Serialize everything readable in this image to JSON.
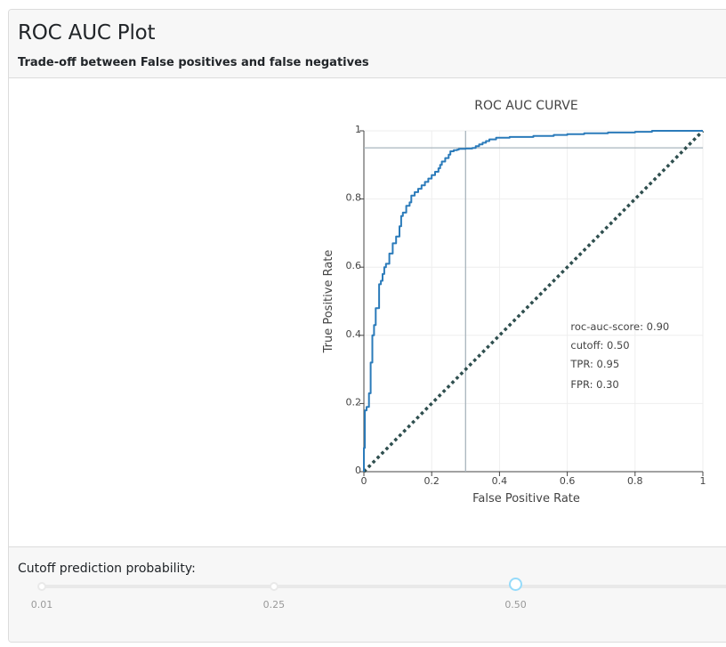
{
  "card": {
    "title": "ROC AUC Plot",
    "subtitle": "Trade-off between False positives and false negatives"
  },
  "chart_data": {
    "type": "line",
    "title": "ROC AUC CURVE",
    "xlabel": "False Positive Rate",
    "ylabel": "True Positive Rate",
    "xlim": [
      0,
      1
    ],
    "ylim": [
      0,
      1
    ],
    "xticks": [
      0,
      0.2,
      0.4,
      0.6,
      0.8,
      1
    ],
    "yticks": [
      0,
      0.2,
      0.4,
      0.6,
      0.8,
      1
    ],
    "xtick_labels": [
      "0",
      "0.2",
      "0.4",
      "0.6",
      "0.8",
      "1"
    ],
    "ytick_labels": [
      "0",
      "0.2",
      "0.4",
      "0.6",
      "0.8",
      "1"
    ],
    "grid": true,
    "colors": {
      "roc": "#2b7bba",
      "diagonal": "#2f4f4f",
      "crosshair": "#a9b5bd",
      "grid": "#eeeeee"
    },
    "series": [
      {
        "x": [
          0,
          0,
          0.003,
          0.003,
          0.008,
          0.008,
          0.015,
          0.015,
          0.02,
          0.02,
          0.025,
          0.025,
          0.03,
          0.03,
          0.035,
          0.035,
          0.045,
          0.045,
          0.05,
          0.05,
          0.055,
          0.055,
          0.06,
          0.06,
          0.065,
          0.065,
          0.075,
          0.075,
          0.085,
          0.085,
          0.095,
          0.095,
          0.105,
          0.105,
          0.11,
          0.11,
          0.115,
          0.115,
          0.125,
          0.125,
          0.135,
          0.135,
          0.14,
          0.14,
          0.15,
          0.15,
          0.16,
          0.16,
          0.17,
          0.17,
          0.18,
          0.18,
          0.19,
          0.19,
          0.2,
          0.2,
          0.21,
          0.21,
          0.22,
          0.22,
          0.225,
          0.225,
          0.23,
          0.23,
          0.24,
          0.24,
          0.25,
          0.25,
          0.255,
          0.255,
          0.265,
          0.265,
          0.275,
          0.275,
          0.28,
          0.28,
          0.3,
          0.3,
          0.32,
          0.32,
          0.33,
          0.33,
          0.34,
          0.34,
          0.35,
          0.35,
          0.36,
          0.36,
          0.37,
          0.37,
          0.39,
          0.39,
          0.43,
          0.43,
          0.5,
          0.5,
          0.56,
          0.56,
          0.6,
          0.6,
          0.65,
          0.65,
          0.72,
          0.72,
          0.8,
          0.8,
          0.85,
          0.85,
          1
        ],
        "y": [
          0,
          0.07,
          0.07,
          0.18,
          0.18,
          0.19,
          0.19,
          0.23,
          0.23,
          0.32,
          0.32,
          0.4,
          0.4,
          0.43,
          0.43,
          0.48,
          0.48,
          0.55,
          0.55,
          0.56,
          0.56,
          0.58,
          0.58,
          0.6,
          0.6,
          0.61,
          0.61,
          0.64,
          0.64,
          0.67,
          0.67,
          0.69,
          0.69,
          0.72,
          0.72,
          0.75,
          0.75,
          0.76,
          0.76,
          0.78,
          0.78,
          0.79,
          0.79,
          0.81,
          0.81,
          0.82,
          0.82,
          0.83,
          0.83,
          0.84,
          0.84,
          0.85,
          0.85,
          0.86,
          0.86,
          0.87,
          0.87,
          0.88,
          0.88,
          0.89,
          0.89,
          0.9,
          0.9,
          0.91,
          0.91,
          0.92,
          0.92,
          0.93,
          0.93,
          0.94,
          0.94,
          0.943,
          0.943,
          0.945,
          0.945,
          0.947,
          0.947,
          0.948,
          0.948,
          0.95,
          0.95,
          0.955,
          0.955,
          0.96,
          0.96,
          0.965,
          0.965,
          0.97,
          0.97,
          0.975,
          0.975,
          0.98,
          0.98,
          0.982,
          0.982,
          0.985,
          0.985,
          0.988,
          0.988,
          0.99,
          0.99,
          0.993,
          0.993,
          0.995,
          0.995,
          0.997,
          0.997,
          1,
          1
        ]
      }
    ],
    "baseline": {
      "x": [
        0,
        1
      ],
      "y": [
        0,
        1
      ]
    },
    "crosshair": {
      "x": 0.3,
      "y": 0.95
    },
    "annotations": [
      {
        "text": "roc-auc-score: 0.90",
        "x": 0.61,
        "y": 0.415
      },
      {
        "text": "cutoff: 0.50",
        "x": 0.61,
        "y": 0.36
      },
      {
        "text": "TPR: 0.95",
        "x": 0.61,
        "y": 0.305
      },
      {
        "text": "FPR: 0.30",
        "x": 0.61,
        "y": 0.245
      }
    ]
  },
  "footer": {
    "label": "Cutoff prediction probability:",
    "slider": {
      "value": 0.5,
      "marks": [
        {
          "label": "0.01",
          "value": 0.01
        },
        {
          "label": "0.25",
          "value": 0.25
        },
        {
          "label": "0.50",
          "value": 0.5
        }
      ]
    }
  }
}
